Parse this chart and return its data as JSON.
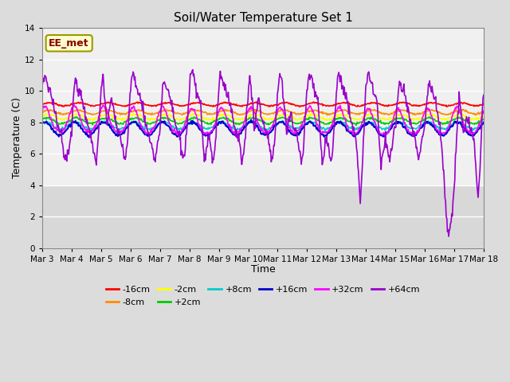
{
  "title": "Soil/Water Temperature Set 1",
  "xlabel": "Time",
  "ylabel": "Temperature (C)",
  "ylim": [
    0,
    14
  ],
  "yticks": [
    0,
    2,
    4,
    6,
    8,
    10,
    12,
    14
  ],
  "background_color": "#dcdcdc",
  "plot_bg_color": "#f0f0f0",
  "annotation_text": "EE_met",
  "annotation_bg": "#ffffcc",
  "annotation_border": "#999900",
  "annotation_text_color": "#880000",
  "colors": [
    "#ff0000",
    "#ff8c00",
    "#ffff00",
    "#00cc00",
    "#00cccc",
    "#0000cc",
    "#ff00ff",
    "#9900cc"
  ],
  "legend_labels": [
    "-16cm",
    "-8cm",
    "-2cm",
    "+2cm",
    "+8cm",
    "+16cm",
    "+32cm",
    "+64cm"
  ],
  "xtick_labels": [
    "Mar 3",
    "Mar 4",
    "Mar 5",
    "Mar 6",
    "Mar 7",
    "Mar 8",
    "Mar 9",
    "Mar 10",
    "Mar 11",
    "Mar 12",
    "Mar 13",
    "Mar 14",
    "Mar 15",
    "Mar 16",
    "Mar 17",
    "Mar 18"
  ]
}
